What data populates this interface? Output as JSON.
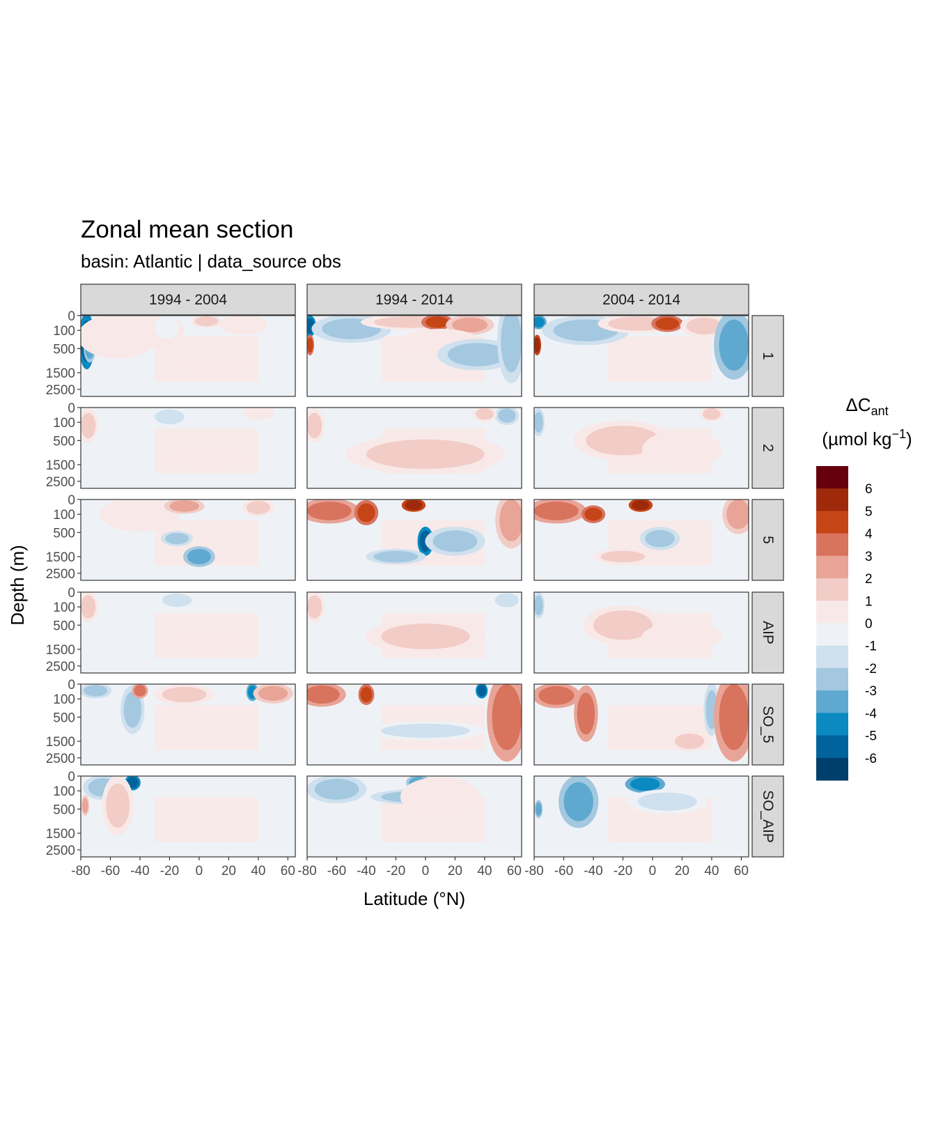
{
  "chart_data": {
    "type": "heatmap",
    "title": "Zonal mean section",
    "subtitle": "basin: Atlantic | data_source obs",
    "xlabel": "Latitude (°N)",
    "ylabel": "Depth (m)",
    "x_ticks": [
      "-80",
      "-60",
      "-40",
      "-20",
      "0",
      "20",
      "40",
      "60"
    ],
    "xlim": [
      -80,
      65
    ],
    "y_ticks": [
      "0",
      "100",
      "500",
      "1500",
      "2500"
    ],
    "ylim": [
      3000,
      0
    ],
    "y_scale": "square-root (reversed)",
    "column_facets": [
      "1994 - 2004",
      "1994 - 2014",
      "2004 - 2014"
    ],
    "row_facets": [
      "1",
      "2",
      "5",
      "AIP",
      "SO_5",
      "SO_AIP"
    ],
    "legend": {
      "title": "ΔC",
      "title_subscript": "ant",
      "unit": "(µmol kg",
      "unit_superscript": "−1",
      "unit_close": ")",
      "position": "right",
      "labels": [
        "6",
        "5",
        "4",
        "3",
        "2",
        "1",
        "0",
        "-1",
        "-2",
        "-3",
        "-4",
        "-5",
        "-6"
      ],
      "colors": [
        "#67000D",
        "#9E2A0B",
        "#C64516",
        "#D8735E",
        "#E8A497",
        "#F2CCC6",
        "#F8E9E8",
        "#EEF2F6",
        "#CFE0EE",
        "#A3C8E0",
        "#5FA9D0",
        "#0A8AC0",
        "#02639C",
        "#003F6B"
      ]
    },
    "panels": [
      {
        "col": 0,
        "row": 0,
        "features": [
          {
            "lat": -76,
            "depth": 300,
            "value": -6,
            "wlat": 4,
            "wdepth": 500
          },
          {
            "lat": -74,
            "depth": 500,
            "value": -4,
            "wlat": 3,
            "wdepth": 300
          },
          {
            "lat": -55,
            "depth": 200,
            "value": 1,
            "wlat": 20,
            "wdepth": 300
          },
          {
            "lat": -30,
            "depth": 100,
            "value": 1,
            "wlat": 15,
            "wdepth": 200
          },
          {
            "lat": 5,
            "depth": 15,
            "value": 2,
            "wlat": 8,
            "wdepth": 30
          },
          {
            "lat": 30,
            "depth": 40,
            "value": 1,
            "wlat": 12,
            "wdepth": 60
          },
          {
            "lat": -22,
            "depth": 60,
            "value": -1,
            "wlat": 6,
            "wdepth": 80
          },
          {
            "lat": 10,
            "depth": 1200,
            "value": 1,
            "wlat": 20,
            "wdepth": 150
          }
        ]
      },
      {
        "col": 1,
        "row": 0,
        "features": [
          {
            "lat": -78,
            "depth": 50,
            "value": -6,
            "wlat": 3,
            "wdepth": 60
          },
          {
            "lat": -78,
            "depth": 400,
            "value": 5,
            "wlat": 2,
            "wdepth": 200
          },
          {
            "lat": -50,
            "depth": 80,
            "value": -3,
            "wlat": 20,
            "wdepth": 120
          },
          {
            "lat": -10,
            "depth": 20,
            "value": 2,
            "wlat": 25,
            "wdepth": 40
          },
          {
            "lat": 8,
            "depth": 20,
            "value": 5,
            "wlat": 8,
            "wdepth": 40
          },
          {
            "lat": 30,
            "depth": 40,
            "value": 3,
            "wlat": 12,
            "wdepth": 60
          },
          {
            "lat": 10,
            "depth": 300,
            "value": 1,
            "wlat": 20,
            "wdepth": 200
          },
          {
            "lat": 35,
            "depth": 700,
            "value": -3,
            "wlat": 20,
            "wdepth": 400
          },
          {
            "lat": 58,
            "depth": 300,
            "value": -3,
            "wlat": 7,
            "wdepth": 1500
          }
        ]
      },
      {
        "col": 2,
        "row": 0,
        "features": [
          {
            "lat": -77,
            "depth": 20,
            "value": -5,
            "wlat": 4,
            "wdepth": 30
          },
          {
            "lat": -78,
            "depth": 400,
            "value": 6,
            "wlat": 2,
            "wdepth": 200
          },
          {
            "lat": -45,
            "depth": 100,
            "value": -3,
            "wlat": 22,
            "wdepth": 120
          },
          {
            "lat": -10,
            "depth": 30,
            "value": 2,
            "wlat": 20,
            "wdepth": 60
          },
          {
            "lat": 10,
            "depth": 30,
            "value": 5,
            "wlat": 8,
            "wdepth": 40
          },
          {
            "lat": 35,
            "depth": 50,
            "value": 2,
            "wlat": 12,
            "wdepth": 80
          },
          {
            "lat": 55,
            "depth": 400,
            "value": -4,
            "wlat": 10,
            "wdepth": 800
          }
        ]
      },
      {
        "col": 0,
        "row": 1,
        "features": [
          {
            "lat": -75,
            "depth": 150,
            "value": 2,
            "wlat": 5,
            "wdepth": 150
          },
          {
            "lat": -20,
            "depth": 40,
            "value": -2,
            "wlat": 10,
            "wdepth": 60
          },
          {
            "lat": 5,
            "depth": 1200,
            "value": 1,
            "wlat": 20,
            "wdepth": 300
          },
          {
            "lat": 40,
            "depth": 15,
            "value": 1,
            "wlat": 8,
            "wdepth": 30
          }
        ]
      },
      {
        "col": 1,
        "row": 1,
        "features": [
          {
            "lat": -75,
            "depth": 150,
            "value": 2,
            "wlat": 5,
            "wdepth": 150
          },
          {
            "lat": 0,
            "depth": 1000,
            "value": 2,
            "wlat": 40,
            "wdepth": 600
          },
          {
            "lat": 55,
            "depth": 30,
            "value": -3,
            "wlat": 6,
            "wdepth": 60
          },
          {
            "lat": 40,
            "depth": 20,
            "value": 2,
            "wlat": 6,
            "wdepth": 40
          }
        ]
      },
      {
        "col": 2,
        "row": 1,
        "features": [
          {
            "lat": -77,
            "depth": 100,
            "value": -3,
            "wlat": 3,
            "wdepth": 100
          },
          {
            "lat": -20,
            "depth": 500,
            "value": 2,
            "wlat": 25,
            "wdepth": 400
          },
          {
            "lat": 20,
            "depth": 800,
            "value": 1,
            "wlat": 20,
            "wdepth": 500
          },
          {
            "lat": 40,
            "depth": 20,
            "value": 2,
            "wlat": 6,
            "wdepth": 40
          }
        ]
      },
      {
        "col": 0,
        "row": 2,
        "features": [
          {
            "lat": -40,
            "depth": 100,
            "value": 1,
            "wlat": 20,
            "wdepth": 200
          },
          {
            "lat": -10,
            "depth": 20,
            "value": 3,
            "wlat": 10,
            "wdepth": 40
          },
          {
            "lat": -15,
            "depth": 700,
            "value": -3,
            "wlat": 8,
            "wdepth": 200
          },
          {
            "lat": 0,
            "depth": 1500,
            "value": -4,
            "wlat": 8,
            "wdepth": 400
          },
          {
            "lat": 40,
            "depth": 30,
            "value": 2,
            "wlat": 8,
            "wdepth": 50
          }
        ]
      },
      {
        "col": 1,
        "row": 2,
        "features": [
          {
            "lat": -65,
            "depth": 60,
            "value": 4,
            "wlat": 15,
            "wdepth": 100
          },
          {
            "lat": -40,
            "depth": 80,
            "value": 5,
            "wlat": 6,
            "wdepth": 80
          },
          {
            "lat": -8,
            "depth": 15,
            "value": 6,
            "wlat": 6,
            "wdepth": 30
          },
          {
            "lat": 0,
            "depth": 800,
            "value": -6,
            "wlat": 4,
            "wdepth": 400
          },
          {
            "lat": -20,
            "depth": 1500,
            "value": -3,
            "wlat": 15,
            "wdepth": 300
          },
          {
            "lat": 20,
            "depth": 800,
            "value": -3,
            "wlat": 15,
            "wdepth": 400
          },
          {
            "lat": 58,
            "depth": 200,
            "value": 3,
            "wlat": 8,
            "wdepth": 600
          }
        ]
      },
      {
        "col": 2,
        "row": 2,
        "features": [
          {
            "lat": -65,
            "depth": 60,
            "value": 4,
            "wlat": 15,
            "wdepth": 100
          },
          {
            "lat": -40,
            "depth": 100,
            "value": 5,
            "wlat": 6,
            "wdepth": 80
          },
          {
            "lat": -8,
            "depth": 15,
            "value": 6,
            "wlat": 6,
            "wdepth": 30
          },
          {
            "lat": -20,
            "depth": 1500,
            "value": 2,
            "wlat": 15,
            "wdepth": 300
          },
          {
            "lat": 5,
            "depth": 700,
            "value": -3,
            "wlat": 10,
            "wdepth": 300
          },
          {
            "lat": 58,
            "depth": 100,
            "value": 3,
            "wlat": 8,
            "wdepth": 300
          }
        ]
      },
      {
        "col": 0,
        "row": 3,
        "features": [
          {
            "lat": -75,
            "depth": 100,
            "value": 2,
            "wlat": 5,
            "wdepth": 150
          },
          {
            "lat": -15,
            "depth": 30,
            "value": -2,
            "wlat": 10,
            "wdepth": 50
          },
          {
            "lat": 5,
            "depth": 1200,
            "value": 1,
            "wlat": 20,
            "wdepth": 300
          }
        ]
      },
      {
        "col": 1,
        "row": 3,
        "features": [
          {
            "lat": -75,
            "depth": 100,
            "value": 2,
            "wlat": 5,
            "wdepth": 150
          },
          {
            "lat": 0,
            "depth": 900,
            "value": 2,
            "wlat": 30,
            "wdepth": 500
          },
          {
            "lat": 55,
            "depth": 30,
            "value": -2,
            "wlat": 8,
            "wdepth": 60
          }
        ]
      },
      {
        "col": 2,
        "row": 3,
        "features": [
          {
            "lat": -77,
            "depth": 80,
            "value": -3,
            "wlat": 3,
            "wdepth": 100
          },
          {
            "lat": -20,
            "depth": 500,
            "value": 2,
            "wlat": 20,
            "wdepth": 400
          },
          {
            "lat": 20,
            "depth": 900,
            "value": 1,
            "wlat": 20,
            "wdepth": 400
          }
        ]
      },
      {
        "col": 0,
        "row": 4,
        "features": [
          {
            "lat": -70,
            "depth": 20,
            "value": -3,
            "wlat": 8,
            "wdepth": 40
          },
          {
            "lat": -45,
            "depth": 300,
            "value": -3,
            "wlat": 6,
            "wdepth": 300
          },
          {
            "lat": -40,
            "depth": 20,
            "value": 4,
            "wlat": 4,
            "wdepth": 40
          },
          {
            "lat": -10,
            "depth": 50,
            "value": 2,
            "wlat": 15,
            "wdepth": 60
          },
          {
            "lat": 36,
            "depth": 30,
            "value": -5,
            "wlat": 3,
            "wdepth": 50
          },
          {
            "lat": 50,
            "depth": 40,
            "value": 3,
            "wlat": 10,
            "wdepth": 60
          }
        ]
      },
      {
        "col": 1,
        "row": 4,
        "features": [
          {
            "lat": -70,
            "depth": 50,
            "value": 4,
            "wlat": 12,
            "wdepth": 100
          },
          {
            "lat": -40,
            "depth": 50,
            "value": 5,
            "wlat": 4,
            "wdepth": 60
          },
          {
            "lat": 38,
            "depth": 20,
            "value": -6,
            "wlat": 3,
            "wdepth": 40
          },
          {
            "lat": 55,
            "depth": 500,
            "value": 4,
            "wlat": 10,
            "wdepth": 1500
          },
          {
            "lat": 0,
            "depth": 1000,
            "value": -2,
            "wlat": 30,
            "wdepth": 300
          }
        ]
      },
      {
        "col": 2,
        "row": 4,
        "features": [
          {
            "lat": -65,
            "depth": 60,
            "value": 4,
            "wlat": 12,
            "wdepth": 100
          },
          {
            "lat": -45,
            "depth": 400,
            "value": 4,
            "wlat": 6,
            "wdepth": 400
          },
          {
            "lat": 40,
            "depth": 300,
            "value": -3,
            "wlat": 4,
            "wdepth": 400
          },
          {
            "lat": 55,
            "depth": 500,
            "value": 4,
            "wlat": 10,
            "wdepth": 1500
          },
          {
            "lat": 25,
            "depth": 1500,
            "value": 2,
            "wlat": 10,
            "wdepth": 400
          }
        ]
      },
      {
        "col": 0,
        "row": 5,
        "features": [
          {
            "lat": -65,
            "depth": 60,
            "value": -3,
            "wlat": 10,
            "wdepth": 100
          },
          {
            "lat": -45,
            "depth": 20,
            "value": -6,
            "wlat": 4,
            "wdepth": 40
          },
          {
            "lat": -55,
            "depth": 400,
            "value": 2,
            "wlat": 8,
            "wdepth": 500
          },
          {
            "lat": -77,
            "depth": 400,
            "value": 3,
            "wlat": 2,
            "wdepth": 200
          }
        ]
      },
      {
        "col": 1,
        "row": 5,
        "features": [
          {
            "lat": -60,
            "depth": 80,
            "value": -3,
            "wlat": 15,
            "wdepth": 120
          },
          {
            "lat": -5,
            "depth": 20,
            "value": -4,
            "wlat": 6,
            "wdepth": 40
          },
          {
            "lat": -10,
            "depth": 200,
            "value": -3,
            "wlat": 20,
            "wdepth": 100
          },
          {
            "lat": 10,
            "depth": 200,
            "value": 1,
            "wlat": 20,
            "wdepth": 200
          }
        ]
      },
      {
        "col": 2,
        "row": 5,
        "features": [
          {
            "lat": -50,
            "depth": 300,
            "value": -4,
            "wlat": 10,
            "wdepth": 400
          },
          {
            "lat": -5,
            "depth": 30,
            "value": -5,
            "wlat": 10,
            "wdepth": 50
          },
          {
            "lat": 10,
            "depth": 300,
            "value": -2,
            "wlat": 20,
            "wdepth": 200
          },
          {
            "lat": -77,
            "depth": 500,
            "value": -4,
            "wlat": 2,
            "wdepth": 200
          }
        ]
      }
    ]
  }
}
